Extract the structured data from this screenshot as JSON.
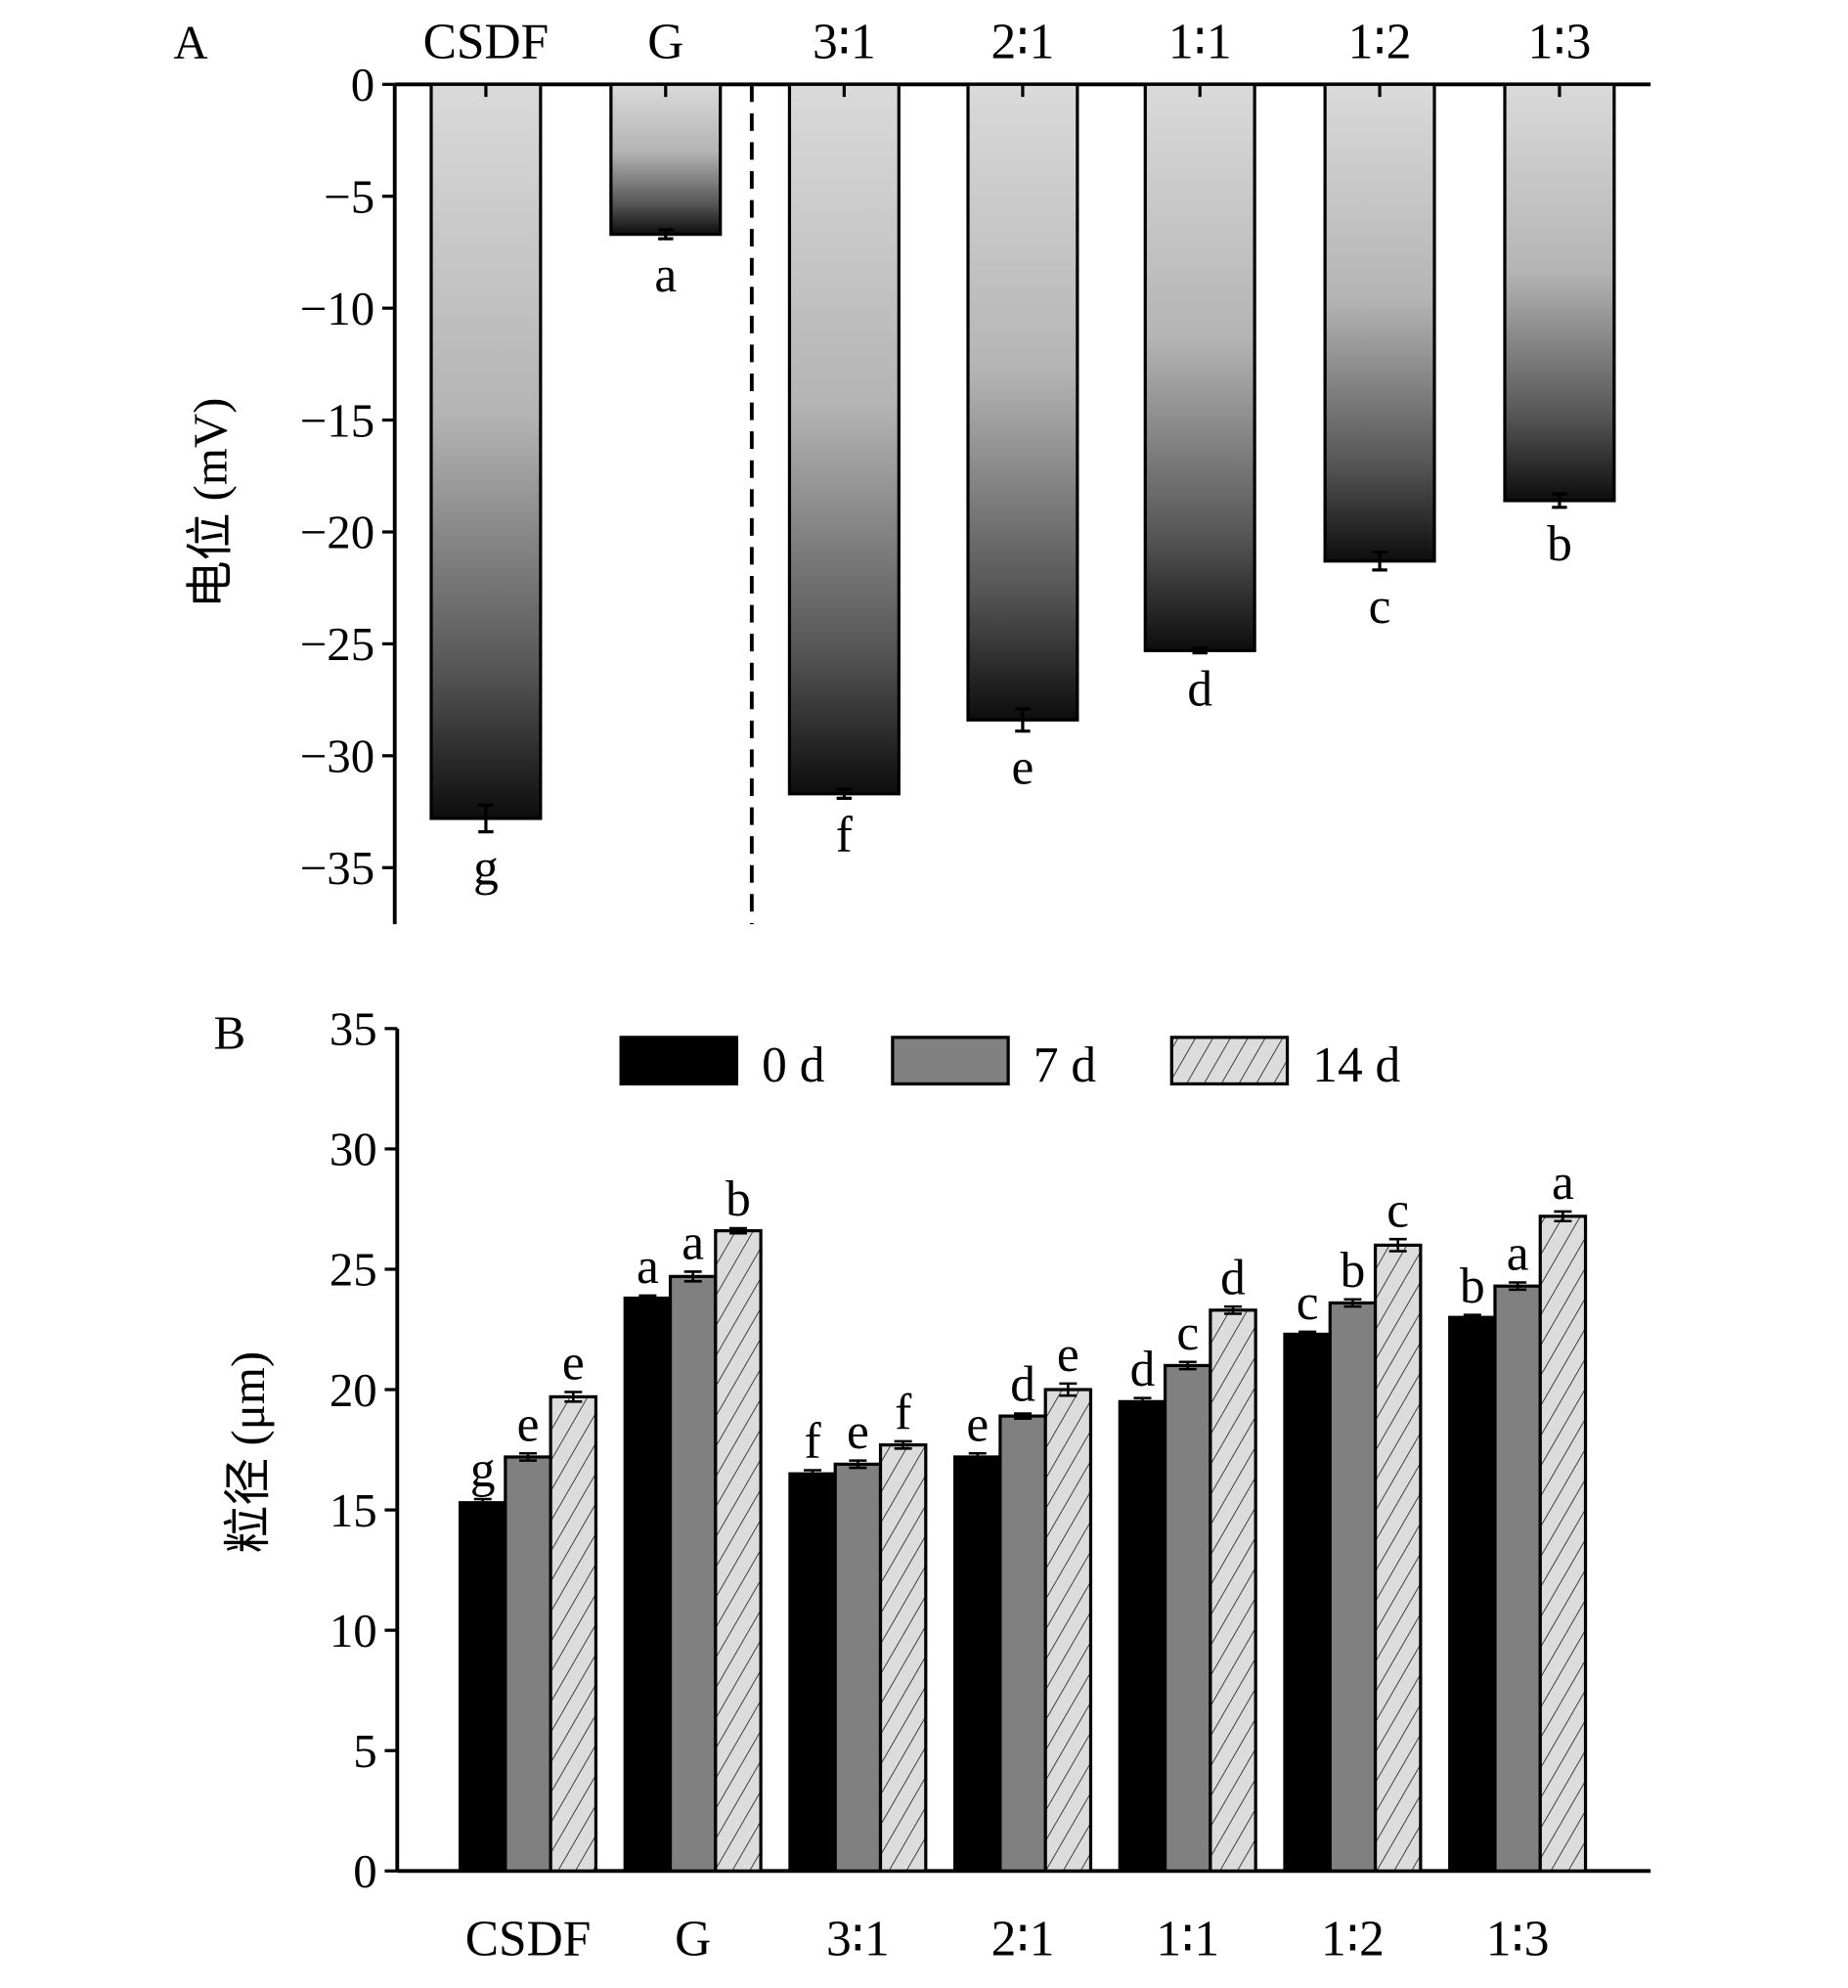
{
  "chart_data": [
    {
      "type": "bar",
      "panel_label": "A",
      "ylabel": "电位 (mV)",
      "ylim": [
        -37.5,
        0
      ],
      "yticks": [
        "0",
        "−5",
        "−10",
        "−15",
        "−20",
        "−25",
        "−30",
        "−35"
      ],
      "ytick_values": [
        0,
        -5,
        -10,
        -15,
        -20,
        -25,
        -30,
        -35
      ],
      "categories": [
        "CSDF",
        "G",
        "3∶1",
        "2∶1",
        "1∶1",
        "1∶2",
        "1∶3"
      ],
      "values": [
        -32.8,
        -6.7,
        -31.7,
        -28.4,
        -25.3,
        -21.3,
        -18.6
      ],
      "errors": [
        0.6,
        0.2,
        0.2,
        0.5,
        0.1,
        0.4,
        0.3
      ],
      "letters": [
        "g",
        "a",
        "f",
        "e",
        "d",
        "c",
        "b"
      ],
      "separator_after_category": 1,
      "colors": {
        "top": "#d9d9d9",
        "bottom": "#111111"
      }
    },
    {
      "type": "bar",
      "panel_label": "B",
      "ylabel": "粒径 (μm)",
      "ylim": [
        0,
        35
      ],
      "yticks": [
        "0",
        "5",
        "10",
        "15",
        "20",
        "25",
        "30",
        "35"
      ],
      "ytick_values": [
        0,
        5,
        10,
        15,
        20,
        25,
        30,
        35
      ],
      "categories": [
        "CSDF",
        "G",
        "3∶1",
        "2∶1",
        "1∶1",
        "1∶2",
        "1∶3"
      ],
      "legend_position": "top",
      "series": [
        {
          "name": "0 d",
          "color": "#000000",
          "values": [
            15.3,
            23.8,
            16.5,
            17.2,
            19.5,
            22.3,
            23.0
          ],
          "errors": [
            0.15,
            0.1,
            0.15,
            0.15,
            0.15,
            0.05,
            0.05
          ],
          "letters": [
            "g",
            "a",
            "f",
            "e",
            "d",
            "c",
            "b"
          ]
        },
        {
          "name": "7 d",
          "color": "#808080",
          "values": [
            17.2,
            24.7,
            16.9,
            18.9,
            21.0,
            23.6,
            24.3
          ],
          "errors": [
            0.15,
            0.2,
            0.15,
            0.05,
            0.15,
            0.15,
            0.15
          ],
          "letters": [
            "e",
            "a",
            "e",
            "d",
            "c",
            "b",
            "a"
          ]
        },
        {
          "name": "14 d",
          "color": "#d9d9d9",
          "values": [
            19.7,
            26.6,
            17.7,
            20.0,
            23.3,
            26.0,
            27.2
          ],
          "errors": [
            0.2,
            0.1,
            0.15,
            0.25,
            0.15,
            0.25,
            0.2
          ],
          "letters": [
            "e",
            "b",
            "f",
            "e",
            "d",
            "c",
            "a"
          ]
        }
      ]
    }
  ]
}
